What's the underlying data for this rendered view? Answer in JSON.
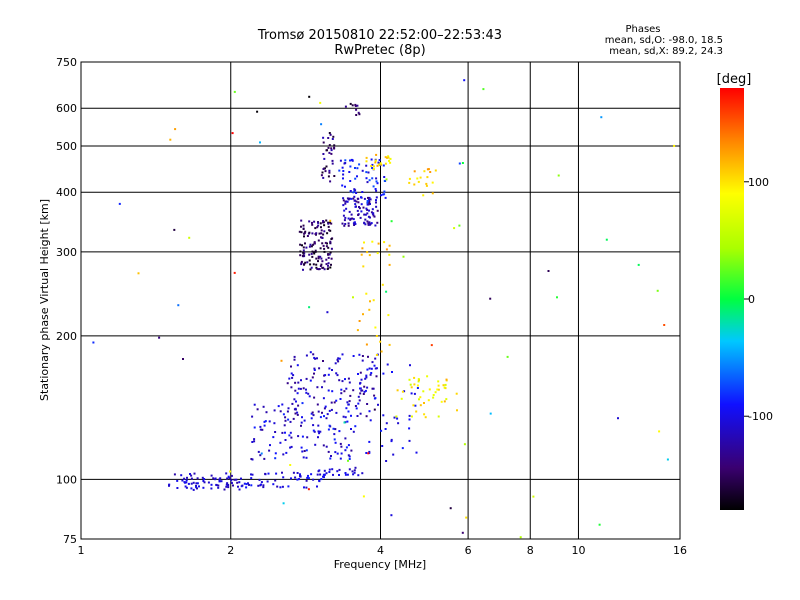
{
  "chart_data": {
    "type": "scatter",
    "title": "Tromsø 20150810 22:52:00–22:53:43",
    "subtitle": "RwPretec (8p)",
    "info": {
      "heading": "Phases",
      "line1": "mean, sd,O: -98.0, 18.5",
      "line2": "mean, sd,X:  89.2, 24.3"
    },
    "xlabel": "Frequency [MHz]",
    "ylabel": "Stationary phase Virtual Height [km]",
    "x_scale": "log",
    "y_scale": "log",
    "xlim": [
      1,
      16
    ],
    "ylim": [
      75,
      750
    ],
    "x_ticks": [
      {
        "value": 1,
        "label": "1"
      },
      {
        "value": 2,
        "label": "2"
      },
      {
        "value": 4,
        "label": "4"
      },
      {
        "value": 6,
        "label": "6"
      },
      {
        "value": 8,
        "label": "8"
      },
      {
        "value": 10,
        "label": "10"
      },
      {
        "value": 16,
        "label": "16"
      }
    ],
    "y_ticks": [
      {
        "value": 75,
        "label": "75"
      },
      {
        "value": 100,
        "label": "100"
      },
      {
        "value": 200,
        "label": "200"
      },
      {
        "value": 300,
        "label": "300"
      },
      {
        "value": 400,
        "label": "400"
      },
      {
        "value": 500,
        "label": "500"
      },
      {
        "value": 600,
        "label": "600"
      },
      {
        "value": 750,
        "label": "750"
      }
    ],
    "grid": true,
    "colorbar": {
      "label": "[deg]",
      "range": [
        -180,
        180
      ],
      "ticks": [
        {
          "value": 100,
          "label": "100"
        },
        {
          "value": 0,
          "label": "0"
        },
        {
          "value": -100,
          "label": "-100"
        }
      ]
    },
    "clusters": [
      {
        "x": [
          1.5,
          2.1
        ],
        "y": [
          95,
          103
        ],
        "n": 75,
        "phase": [
          -125,
          -95
        ]
      },
      {
        "x": [
          2.1,
          3.1
        ],
        "y": [
          96,
          104
        ],
        "n": 60,
        "phase": [
          -120,
          -85
        ]
      },
      {
        "x": [
          2.2,
          3.6
        ],
        "y": [
          110,
          145
        ],
        "n": 130,
        "phase": [
          -130,
          -80
        ]
      },
      {
        "x": [
          2.6,
          4.0
        ],
        "y": [
          135,
          185
        ],
        "n": 120,
        "phase": [
          -140,
          -90
        ]
      },
      {
        "x": [
          3.0,
          3.7
        ],
        "y": [
          102,
          106
        ],
        "n": 22,
        "phase": [
          -120,
          -95
        ]
      },
      {
        "x": [
          3.6,
          4.8
        ],
        "y": [
          112,
          175
        ],
        "n": 45,
        "phase": [
          -110,
          -85
        ]
      },
      {
        "x": [
          4.3,
          5.7
        ],
        "y": [
          135,
          165
        ],
        "n": 45,
        "phase": [
          60,
          120
        ]
      },
      {
        "x": [
          2.75,
          3.2
        ],
        "y": [
          275,
          350
        ],
        "n": 140,
        "phase": [
          -175,
          -120
        ]
      },
      {
        "x": [
          3.05,
          3.25
        ],
        "y": [
          420,
          540
        ],
        "n": 35,
        "phase": [
          -170,
          -115
        ]
      },
      {
        "x": [
          3.35,
          3.95
        ],
        "y": [
          340,
          390
        ],
        "n": 95,
        "phase": [
          -145,
          -100
        ]
      },
      {
        "x": [
          3.3,
          4.1
        ],
        "y": [
          380,
          470
        ],
        "n": 70,
        "phase": [
          -115,
          -70
        ]
      },
      {
        "x": [
          3.7,
          4.2
        ],
        "y": [
          440,
          480
        ],
        "n": 20,
        "phase": [
          80,
          130
        ]
      },
      {
        "x": [
          4.5,
          5.2
        ],
        "y": [
          390,
          450
        ],
        "n": 18,
        "phase": [
          90,
          130
        ]
      },
      {
        "x": [
          3.4,
          3.65
        ],
        "y": [
          580,
          615
        ],
        "n": 10,
        "phase": [
          -170,
          -130
        ]
      },
      {
        "x": [
          3.6,
          4.2
        ],
        "y": [
          180,
          320
        ],
        "n": 30,
        "phase": [
          90,
          130
        ]
      },
      {
        "x": [
          1.0,
          16.0
        ],
        "y": [
          75,
          700
        ],
        "n": 70,
        "phase": [
          -180,
          180
        ]
      }
    ]
  }
}
